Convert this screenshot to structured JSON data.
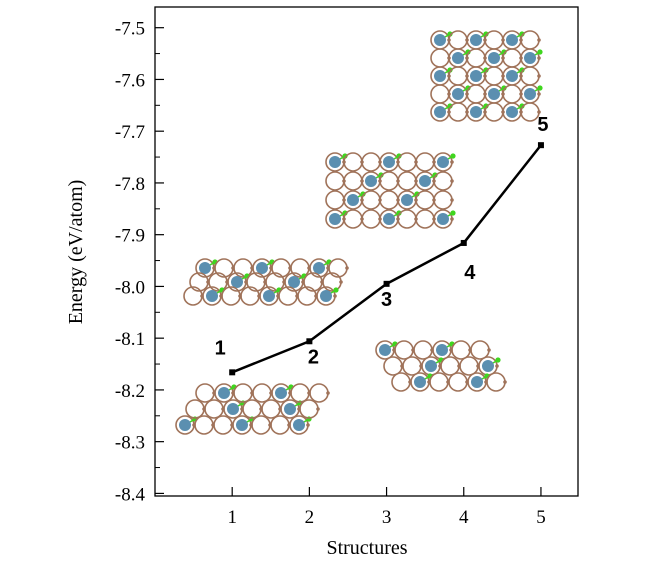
{
  "chart_data": {
    "type": "line",
    "title": "",
    "xlabel": "Structures",
    "ylabel": "Energy (eV/atom)",
    "x": [
      1,
      2,
      3,
      4,
      5
    ],
    "series": [
      {
        "name": "Energy",
        "values": [
          -8.166,
          -8.106,
          -7.995,
          -7.916,
          -7.727
        ],
        "color": "#000000"
      }
    ],
    "point_labels": [
      "1",
      "2",
      "3",
      "4",
      "5"
    ],
    "xlim": [
      0,
      5.48
    ],
    "ylim": [
      -8.405,
      -7.46
    ],
    "xticks": [
      1,
      2,
      3,
      4,
      5
    ],
    "xtick_labels": [
      "1",
      "2",
      "3",
      "4",
      "5"
    ],
    "yticks": [
      -7.5,
      -7.6,
      -7.7,
      -7.8,
      -7.9,
      -8.0,
      -8.1,
      -8.2,
      -8.3,
      -8.4
    ],
    "ytick_labels": [
      "-7.5",
      "-7.6",
      "-7.7",
      "-7.8",
      "-7.9",
      "-8.0",
      "-8.1",
      "-8.2",
      "-8.3",
      "-8.4"
    ],
    "grid": false,
    "legend": "none",
    "inset_colors": {
      "carbon": "#a0735a",
      "metal": "#5b8fb0",
      "bond": "#3fd61e"
    }
  }
}
